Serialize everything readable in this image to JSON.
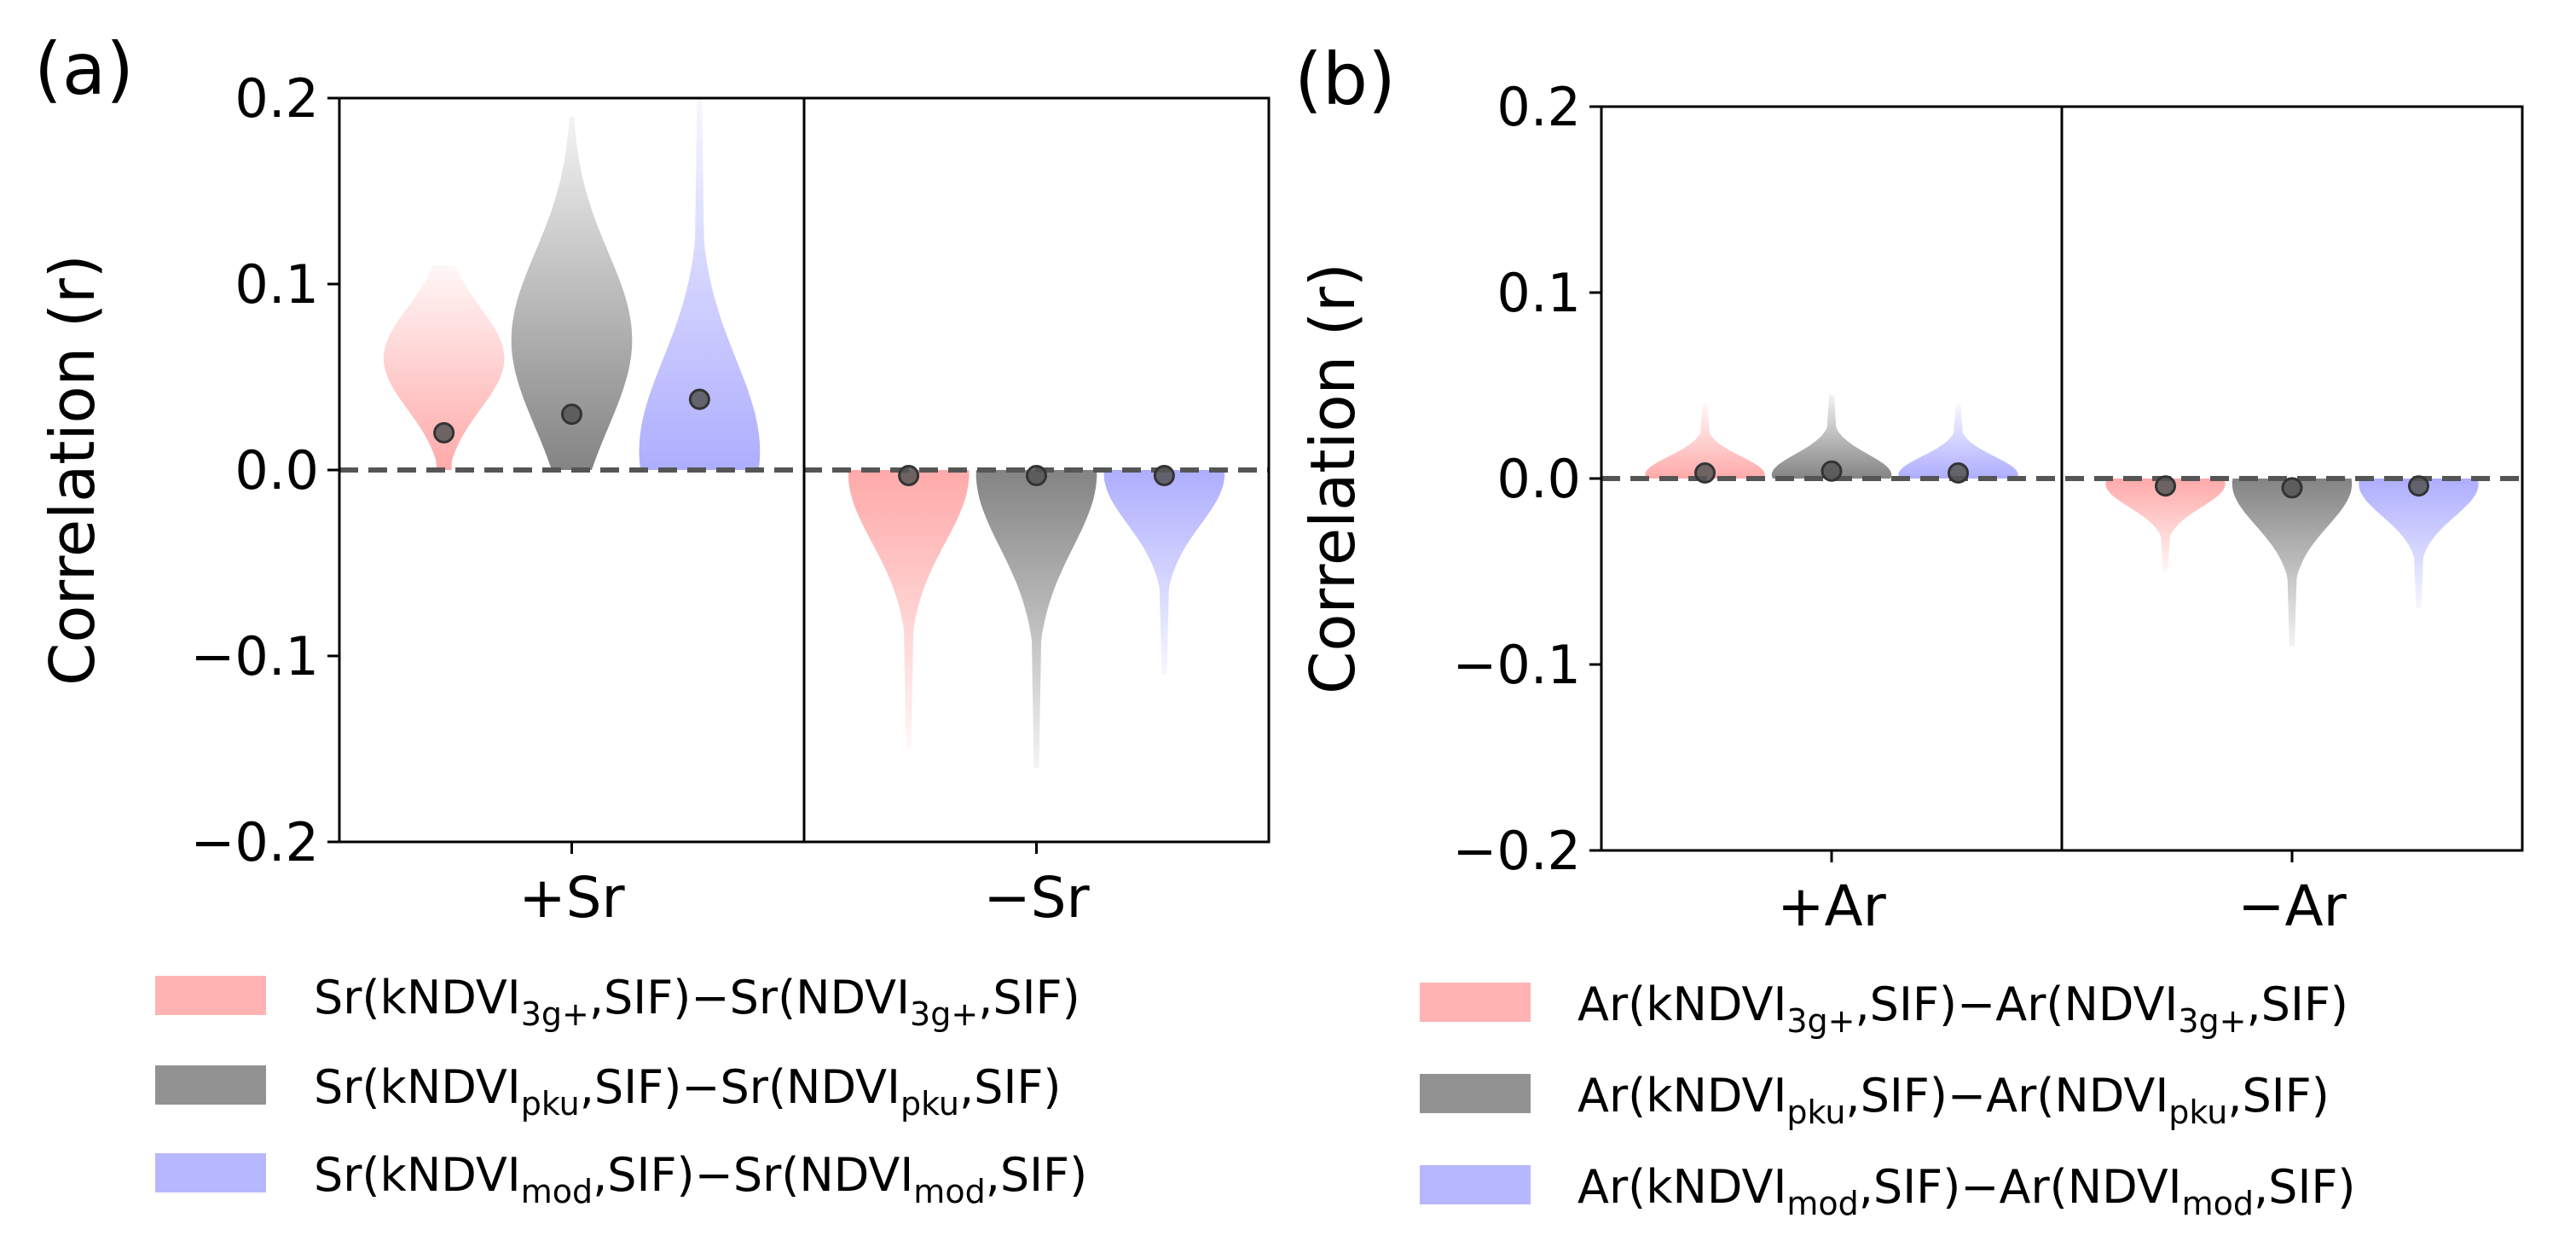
{
  "colors": {
    "kndvi_3g": "#ff9a9a",
    "kndvi_pku": "#6e6e6e",
    "kndvi_mod": "#9f9fff",
    "mean_dot": "#555555",
    "zero_line": "#555555"
  },
  "chart_data": [
    {
      "type": "violin",
      "panel_label": "(a)",
      "ylabel": "Correlation (r)",
      "ylim": [
        -0.2,
        0.2
      ],
      "yticks": [
        -0.2,
        -0.1,
        0.0,
        0.1,
        0.2
      ],
      "ytick_labels": [
        "−0.2",
        "−0.1",
        "0.0",
        "0.1",
        "0.2"
      ],
      "reference_line": 0.0,
      "categories": [
        "+Sr",
        "−Sr"
      ],
      "series": [
        {
          "name": "kNDVI 3g+",
          "legend": {
            "pre": "Sr(kNDVI",
            "sub1": "3g+",
            "mid": ",SIF)−Sr(NDVI",
            "sub2": "3g+",
            "post": ",SIF)"
          },
          "color_key": "kndvi_3g",
          "means": [
            0.02,
            -0.003
          ],
          "ranges": [
            [
              0.0,
              0.11
            ],
            [
              -0.15,
              0.0
            ]
          ],
          "peaks": [
            0.06,
            -0.002
          ]
        },
        {
          "name": "kNDVI pku",
          "legend": {
            "pre": "Sr(kNDVI",
            "sub1": "pku",
            "mid": ",SIF)−Sr(NDVI",
            "sub2": "pku",
            "post": ",SIF)"
          },
          "color_key": "kndvi_pku",
          "means": [
            0.03,
            -0.003
          ],
          "ranges": [
            [
              0.0,
              0.19
            ],
            [
              -0.16,
              0.0
            ]
          ],
          "peaks": [
            0.07,
            -0.002
          ]
        },
        {
          "name": "kNDVI mod",
          "legend": {
            "pre": "Sr(kNDVI",
            "sub1": "mod",
            "mid": ",SIF)−Sr(NDVI",
            "sub2": "mod",
            "post": ",SIF)"
          },
          "color_key": "kndvi_mod",
          "means": [
            0.038,
            -0.003
          ],
          "ranges": [
            [
              0.0,
              0.2
            ],
            [
              -0.11,
              0.0
            ]
          ],
          "peaks": [
            0.01,
            -0.002
          ]
        }
      ]
    },
    {
      "type": "violin",
      "panel_label": "(b)",
      "ylabel": "Correlation (r)",
      "ylim": [
        -0.2,
        0.2
      ],
      "yticks": [
        -0.2,
        -0.1,
        0.0,
        0.1,
        0.2
      ],
      "ytick_labels": [
        "−0.2",
        "−0.1",
        "0.0",
        "0.1",
        "0.2"
      ],
      "reference_line": 0.0,
      "categories": [
        "+Ar",
        "−Ar"
      ],
      "series": [
        {
          "name": "kNDVI 3g+",
          "legend": {
            "pre": "Ar(kNDVI",
            "sub1": "3g+",
            "mid": ",SIF)−Ar(NDVI",
            "sub2": "3g+",
            "post": ",SIF)"
          },
          "color_key": "kndvi_3g",
          "means": [
            0.003,
            -0.004
          ],
          "ranges": [
            [
              0.0,
              0.04
            ],
            [
              -0.05,
              0.0
            ]
          ],
          "peaks": [
            0.002,
            -0.003
          ]
        },
        {
          "name": "kNDVI pku",
          "legend": {
            "pre": "Ar(kNDVI",
            "sub1": "pku",
            "mid": ",SIF)−Ar(NDVI",
            "sub2": "pku",
            "post": ",SIF)"
          },
          "color_key": "kndvi_pku",
          "means": [
            0.004,
            -0.005
          ],
          "ranges": [
            [
              0.0,
              0.045
            ],
            [
              -0.09,
              0.0
            ]
          ],
          "peaks": [
            0.002,
            -0.003
          ]
        },
        {
          "name": "kNDVI mod",
          "legend": {
            "pre": "Ar(kNDVI",
            "sub1": "mod",
            "mid": ",SIF)−Ar(NDVI",
            "sub2": "mod",
            "post": ",SIF)"
          },
          "color_key": "kndvi_mod",
          "means": [
            0.003,
            -0.004
          ],
          "ranges": [
            [
              0.0,
              0.04
            ],
            [
              -0.07,
              0.0
            ]
          ],
          "peaks": [
            0.002,
            -0.003
          ]
        }
      ]
    }
  ]
}
